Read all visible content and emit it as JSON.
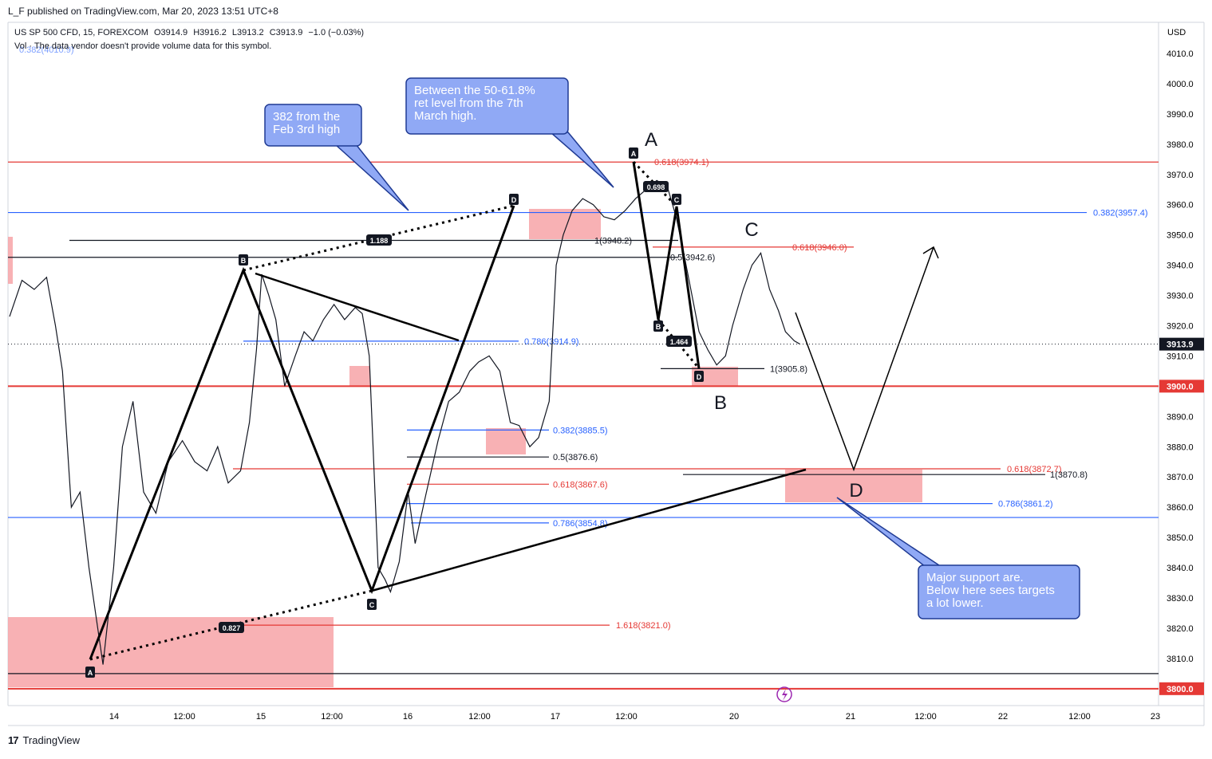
{
  "header": {
    "published": "L_F published on TradingView.com, Mar 20, 2023 13:51 UTC+8",
    "symbol": "US SP 500 CFD, 15, FOREXCOM",
    "open": "O3914.9",
    "high": "H3916.2",
    "low": "L3913.2",
    "close": "C3913.9",
    "change": "−1.0 (−0.03%)",
    "volume_note": "Vol · The data vendor doesn't provide volume data for this symbol."
  },
  "footer": {
    "brand": "TradingView",
    "logo": "17"
  },
  "colors": {
    "red": "#e53935",
    "blue": "#2962ff",
    "zone": "#f7a3a7",
    "callout": "#90a9f5",
    "callout_border": "#1f3a93"
  },
  "chart_data": {
    "type": "line",
    "title": "US SP 500 CFD, 15, FOREXCOM",
    "currency": "USD",
    "ylim": [
      3795,
      4020
    ],
    "y_ticks": [
      "4010.0",
      "4000.0",
      "3990.0",
      "3980.0",
      "3970.0",
      "3960.0",
      "3950.0",
      "3940.0",
      "3930.0",
      "3920.0",
      "3910.0",
      "3890.0",
      "3880.0",
      "3870.0",
      "3860.0",
      "3850.0",
      "3840.0",
      "3830.0",
      "3820.0",
      "3810.0"
    ],
    "x_ticks": [
      "14",
      "12:00",
      "15",
      "12:00",
      "16",
      "12:00",
      "17",
      "12:00",
      "20",
      "21",
      "12:00",
      "22",
      "12:00",
      "23"
    ],
    "last_price": "3913.9",
    "price_labels": [
      {
        "text": "3900.0",
        "value": 3900,
        "color": "#e53935"
      },
      {
        "text": "3800.0",
        "value": 3800,
        "color": "#e53935"
      }
    ],
    "price_path": [
      [
        0,
        3923
      ],
      [
        0.7,
        3935
      ],
      [
        1.4,
        3932
      ],
      [
        2.1,
        3936
      ],
      [
        2.6,
        3920
      ],
      [
        3.0,
        3905
      ],
      [
        3.5,
        3860
      ],
      [
        4.0,
        3865
      ],
      [
        4.5,
        3840
      ],
      [
        5.3,
        3808
      ],
      [
        5.9,
        3840
      ],
      [
        6.4,
        3880
      ],
      [
        7.0,
        3895
      ],
      [
        7.6,
        3865
      ],
      [
        8.3,
        3858
      ],
      [
        9.0,
        3875
      ],
      [
        9.8,
        3882
      ],
      [
        10.5,
        3875
      ],
      [
        11.2,
        3872
      ],
      [
        11.8,
        3880
      ],
      [
        12.4,
        3868
      ],
      [
        13.1,
        3872
      ],
      [
        13.6,
        3888
      ],
      [
        14.0,
        3912
      ],
      [
        14.3,
        3937
      ],
      [
        14.7,
        3930
      ],
      [
        15.1,
        3922
      ],
      [
        15.6,
        3900
      ],
      [
        16.2,
        3910
      ],
      [
        16.7,
        3918
      ],
      [
        17.2,
        3915
      ],
      [
        17.8,
        3922
      ],
      [
        18.4,
        3927
      ],
      [
        19.0,
        3922
      ],
      [
        19.6,
        3926
      ],
      [
        20.0,
        3924
      ],
      [
        20.4,
        3910
      ],
      [
        20.9,
        3840
      ],
      [
        21.3,
        3836
      ],
      [
        21.6,
        3832
      ],
      [
        22.1,
        3842
      ],
      [
        22.6,
        3865
      ],
      [
        23.0,
        3848
      ],
      [
        23.6,
        3864
      ],
      [
        24.3,
        3882
      ],
      [
        24.9,
        3895
      ],
      [
        25.5,
        3898
      ],
      [
        26.1,
        3905
      ],
      [
        26.6,
        3908
      ],
      [
        27.2,
        3910
      ],
      [
        27.8,
        3905
      ],
      [
        28.4,
        3888
      ],
      [
        28.9,
        3887
      ],
      [
        29.5,
        3880
      ],
      [
        30.0,
        3883
      ],
      [
        30.6,
        3895
      ],
      [
        31.0,
        3940
      ],
      [
        31.4,
        3950
      ],
      [
        31.9,
        3958
      ],
      [
        32.5,
        3962
      ],
      [
        33.1,
        3960
      ],
      [
        33.7,
        3956
      ],
      [
        34.3,
        3955
      ],
      [
        34.9,
        3958
      ],
      [
        35.5,
        3962
      ],
      [
        36.1,
        3965
      ],
      [
        36.7,
        3968
      ],
      [
        37.3,
        3966
      ],
      [
        37.8,
        3956
      ],
      [
        38.3,
        3942
      ],
      [
        38.7,
        3930
      ],
      [
        39.1,
        3918
      ],
      [
        39.6,
        3912
      ],
      [
        40.1,
        3907
      ],
      [
        40.6,
        3910
      ],
      [
        41.0,
        3920
      ],
      [
        41.6,
        3932
      ],
      [
        42.1,
        3940
      ],
      [
        42.6,
        3944
      ],
      [
        43.1,
        3932
      ],
      [
        43.6,
        3925
      ],
      [
        44.0,
        3918
      ],
      [
        44.5,
        3915
      ],
      [
        44.8,
        3914
      ]
    ],
    "horizontal_lines": [
      {
        "value": 3974.1,
        "color": "#e53935",
        "label": "0.618(3974.1)"
      },
      {
        "value": 3957.4,
        "color": "#2962ff",
        "label": "0.382(3957.4)"
      },
      {
        "value": 3948.2,
        "color": "#131722",
        "label": "1(3948.2)"
      },
      {
        "value": 3942.6,
        "color": "#131722",
        "label": "0.5(3942.6)"
      },
      {
        "value": 3946.0,
        "color": "#e53935",
        "label": "0.618(3946.0)"
      },
      {
        "value": 3914.9,
        "color": "#2962ff",
        "label": "0.786(3914.9)"
      },
      {
        "value": 3905.8,
        "color": "#131722",
        "label": "1(3905.8)"
      },
      {
        "value": 3900.0,
        "color": "#e53935",
        "label": ""
      },
      {
        "value": 3885.5,
        "color": "#2962ff",
        "label": "0.382(3885.5)"
      },
      {
        "value": 3876.6,
        "color": "#131722",
        "label": "0.5(3876.6)"
      },
      {
        "value": 3872.7,
        "color": "#e53935",
        "label": "0.618(3872.7)"
      },
      {
        "value": 3870.8,
        "color": "#131722",
        "label": "1(3870.8)"
      },
      {
        "value": 3867.6,
        "color": "#e53935",
        "label": "0.618(3867.6)"
      },
      {
        "value": 3861.2,
        "color": "#2962ff",
        "label": "0.786(3861.2)"
      },
      {
        "value": 3856.6,
        "color": "#2962ff",
        "label": ""
      },
      {
        "value": 3854.8,
        "color": "#2962ff",
        "label": "0.786(3854.8)"
      },
      {
        "value": 3821.0,
        "color": "#e53935",
        "label": "1.618(3821.0)"
      },
      {
        "value": 3805.0,
        "color": "#131722",
        "label": ""
      },
      {
        "value": 3800.0,
        "color": "#e53935",
        "label": ""
      }
    ],
    "top_faded_label": "0.382(4010.9)",
    "patterns": [
      {
        "points": [
          "A",
          "B",
          "C",
          "D"
        ],
        "ratios": [
          "0.827",
          "1.188"
        ],
        "values": [
          3809,
          3939,
          3831,
          3958
        ]
      },
      {
        "points": [
          "A",
          "B",
          "C",
          "D"
        ],
        "ratios": [
          "0.698",
          "1.464"
        ],
        "values": [
          3974,
          3920,
          3958,
          3909
        ]
      }
    ],
    "wave_labels": [
      "A",
      "B",
      "C",
      "D"
    ],
    "annotations": [
      "382 from the\nFeb 3rd high",
      "Between the 50-61.8%\nret level from the 7th\nMarch high.",
      "Major support are.\nBelow here sees targets\na lot lower."
    ]
  }
}
